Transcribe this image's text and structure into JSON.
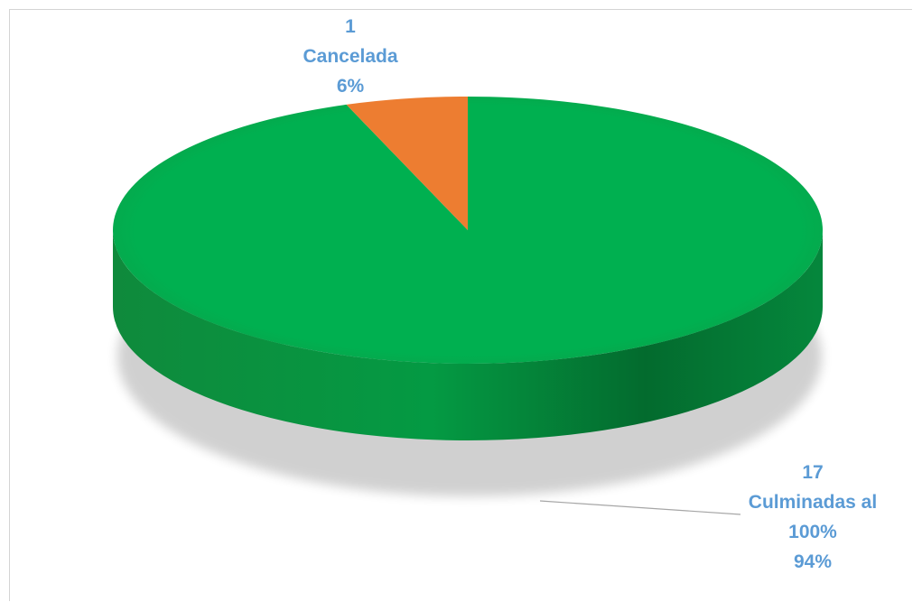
{
  "chart_data": {
    "type": "pie",
    "style": "3d",
    "slices": [
      {
        "count": "17",
        "label": "Culminadas al 100%",
        "label_lines": [
          "Culminadas al",
          "100%"
        ],
        "percent": "94%",
        "value": 17,
        "color": "#00B050"
      },
      {
        "count": "1",
        "label": "Cancelada",
        "label_lines": [
          "Cancelada"
        ],
        "percent": "6%",
        "value": 1,
        "color": "#ED7D31"
      }
    ],
    "label_color": "#5B9BD5",
    "legend": "none"
  }
}
